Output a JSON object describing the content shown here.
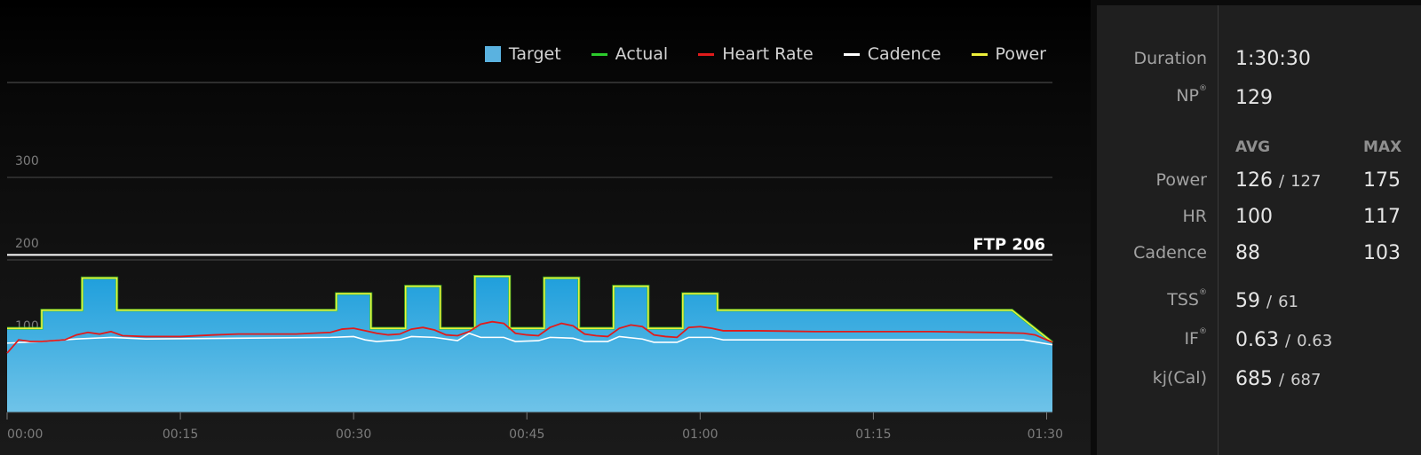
{
  "chart_data": {
    "type": "area",
    "x_ticks": [
      "00:00",
      "00:15",
      "00:30",
      "00:45",
      "01:00",
      "01:15",
      "01:30"
    ],
    "x_range_minutes": [
      0,
      90.5
    ],
    "y_ticks": [
      100,
      200,
      300
    ],
    "y_range": [
      0,
      400
    ],
    "ftp_label": "FTP 206",
    "ftp_value": 206,
    "legend": [
      {
        "name": "Target",
        "color": "#5ab2e0",
        "kind": "box"
      },
      {
        "name": "Actual",
        "color": "#2ccc2c",
        "kind": "line"
      },
      {
        "name": "Heart Rate",
        "color": "#e11b1b",
        "kind": "line"
      },
      {
        "name": "Cadence",
        "color": "#ffffff",
        "kind": "line"
      },
      {
        "name": "Power",
        "color": "#eef03a",
        "kind": "line"
      }
    ],
    "target": {
      "minutes": [
        0,
        3,
        3,
        6.5,
        6.5,
        9.5,
        9.5,
        28.5,
        28.5,
        31.5,
        31.5,
        34.5,
        34.5,
        37.5,
        37.5,
        40.5,
        40.5,
        43.5,
        43.5,
        46.5,
        46.5,
        49.5,
        49.5,
        52.5,
        52.5,
        55.5,
        55.5,
        58.5,
        58.5,
        61.5,
        61.5,
        87,
        90.5
      ],
      "values": [
        102,
        102,
        124,
        124,
        163,
        163,
        124,
        124,
        144,
        144,
        102,
        102,
        153,
        153,
        102,
        102,
        165,
        165,
        102,
        102,
        163,
        163,
        102,
        102,
        153,
        153,
        102,
        102,
        144,
        144,
        124,
        124,
        85
      ]
    },
    "heart_rate": {
      "minutes": [
        0,
        1,
        2,
        3,
        5,
        6,
        7,
        8,
        9,
        10,
        12,
        15,
        18,
        20,
        25,
        28,
        29,
        30,
        31,
        32,
        33,
        34,
        35,
        36,
        37,
        38,
        39,
        40,
        41,
        42,
        43,
        44,
        45,
        46,
        47,
        48,
        49,
        50,
        51,
        52,
        53,
        54,
        55,
        56,
        57,
        58,
        59,
        60,
        61,
        62,
        65,
        70,
        75,
        80,
        85,
        88,
        89,
        90.5
      ],
      "values": [
        72,
        88,
        86,
        86,
        88,
        94,
        97,
        95,
        98,
        93,
        92,
        92,
        94,
        95,
        95,
        97,
        101,
        102,
        99,
        96,
        94,
        95,
        101,
        103,
        100,
        94,
        93,
        98,
        107,
        110,
        108,
        96,
        94,
        93,
        103,
        108,
        105,
        95,
        93,
        92,
        102,
        106,
        104,
        94,
        92,
        91,
        103,
        104,
        102,
        99,
        99,
        98,
        98,
        98,
        97,
        96,
        94,
        85
      ]
    },
    "cadence": {
      "minutes": [
        0,
        3,
        6,
        9,
        12,
        20,
        28,
        30,
        31,
        32,
        34,
        35,
        37,
        39,
        40,
        41,
        43,
        44,
        46,
        47,
        49,
        50,
        52,
        53,
        55,
        56,
        58,
        59,
        61,
        62,
        70,
        80,
        88,
        90.5
      ],
      "values": [
        84,
        86,
        89,
        91,
        89,
        90,
        91,
        92,
        88,
        86,
        88,
        92,
        91,
        87,
        96,
        91,
        91,
        86,
        87,
        91,
        90,
        86,
        86,
        92,
        89,
        85,
        85,
        91,
        91,
        88,
        88,
        88,
        88,
        82
      ]
    },
    "summary": {
      "duration_label": "Duration",
      "duration": "1:30:30",
      "np_label": "NP",
      "np": "129",
      "col_avg": "AVG",
      "col_max": "MAX",
      "power_label": "Power",
      "power_avg": "126",
      "power_avg2": "127",
      "power_max": "175",
      "hr_label": "HR",
      "hr_avg": "100",
      "hr_max": "117",
      "cadence_label": "Cadence",
      "cadence_avg": "88",
      "cadence_max": "103",
      "tss_label": "TSS",
      "tss": "59",
      "tss2": "61",
      "if_label": "IF",
      "if_val": "0.63",
      "if_val2": "0.63",
      "kj_label": "kj(Cal)",
      "kj": "685",
      "kj2": "687",
      "registered": "®",
      "slash": "/"
    }
  }
}
